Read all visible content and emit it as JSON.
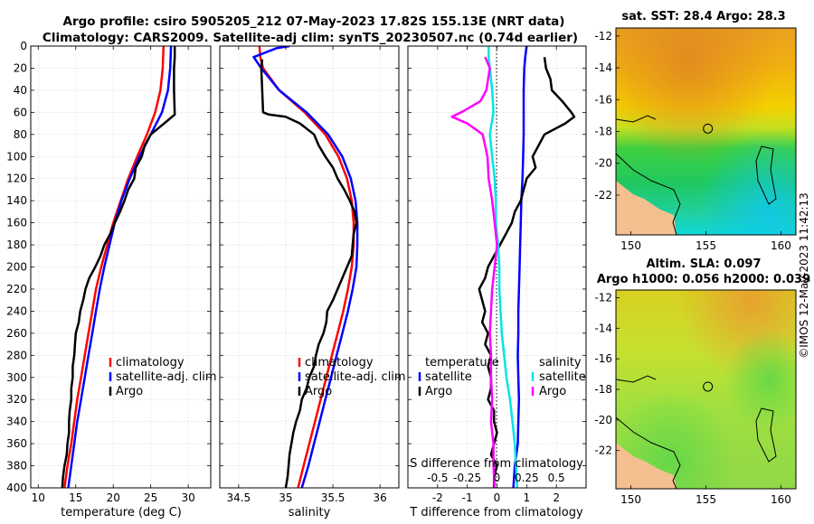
{
  "title_line1": "Argo profile: csiro 5905205_212 07-May-2023 17.82S 155.13E (NRT data)",
  "title_line2": "Climatology: CARS2009. Satellite-adj clim: synTS_20230507.nc (0.74d earlier)",
  "colors": {
    "climatology": "#ff0000",
    "satellite": "#0000ff",
    "argo": "#000000",
    "sat_salinity": "#00e5e5",
    "argo_salinity": "#ff00ff",
    "grid": "#c8c8c8"
  },
  "chart_data": [
    {
      "name": "temperature",
      "type": "line",
      "xlabel": "temperature (deg C)",
      "ylabel": "depth",
      "xlim": [
        9,
        33
      ],
      "ylim": [
        400,
        0
      ],
      "xticks": [
        10,
        15,
        20,
        25,
        30
      ],
      "yticks": [
        0,
        20,
        40,
        60,
        80,
        100,
        120,
        140,
        160,
        180,
        200,
        220,
        240,
        260,
        280,
        300,
        320,
        340,
        360,
        380,
        400
      ],
      "legend": [
        "climatology",
        "satellite-adj. clim",
        "Argo"
      ],
      "series": [
        {
          "name": "climatology",
          "color_key": "climatology",
          "depth": [
            0,
            20,
            40,
            60,
            80,
            100,
            120,
            140,
            160,
            180,
            200,
            220,
            240,
            260,
            280,
            300,
            320,
            340,
            360,
            380,
            400
          ],
          "values": [
            26.7,
            26.6,
            26.3,
            25.6,
            24.5,
            23.2,
            22.0,
            21.0,
            20.0,
            19.2,
            18.4,
            17.7,
            17.2,
            16.7,
            16.2,
            15.7,
            15.2,
            14.8,
            14.4,
            13.9,
            13.5
          ]
        },
        {
          "name": "satellite-adj. clim",
          "color_key": "satellite",
          "depth": [
            0,
            20,
            40,
            60,
            80,
            100,
            120,
            140,
            160,
            180,
            200,
            220,
            240,
            260,
            280,
            300,
            320,
            340,
            360,
            380,
            400
          ],
          "values": [
            27.7,
            27.6,
            27.3,
            26.5,
            25.0,
            23.5,
            22.2,
            21.1,
            20.2,
            19.5,
            18.8,
            18.2,
            17.7,
            17.2,
            16.7,
            16.2,
            15.7,
            15.2,
            14.8,
            14.4,
            14.0
          ]
        },
        {
          "name": "Argo",
          "color_key": "argo",
          "depth": [
            0,
            10,
            20,
            40,
            62,
            70,
            80,
            90,
            100,
            110,
            120,
            130,
            140,
            150,
            160,
            170,
            180,
            190,
            200,
            210,
            220,
            230,
            240,
            250,
            260,
            270,
            280,
            290,
            300,
            310,
            320,
            330,
            340,
            350,
            360,
            370,
            380,
            390,
            400
          ],
          "values": [
            28.2,
            28.2,
            28.1,
            28.1,
            28.2,
            26.8,
            25.0,
            24.2,
            23.8,
            23.0,
            22.8,
            22.0,
            21.5,
            20.9,
            20.2,
            19.6,
            18.8,
            18.3,
            17.6,
            16.8,
            16.3,
            16.0,
            15.6,
            15.4,
            15.0,
            14.9,
            14.8,
            14.6,
            14.6,
            14.4,
            14.4,
            14.2,
            14.1,
            14.1,
            13.9,
            13.8,
            13.5,
            13.3,
            13.2
          ]
        }
      ]
    },
    {
      "name": "salinity",
      "type": "line",
      "xlabel": "salinity",
      "ylabel": "depth",
      "xlim": [
        34.3,
        36.2
      ],
      "ylim": [
        400,
        0
      ],
      "xticks": [
        34.5,
        35,
        35.5,
        36
      ],
      "yticks": [
        0,
        20,
        40,
        60,
        80,
        100,
        120,
        140,
        160,
        180,
        200,
        220,
        240,
        260,
        280,
        300,
        320,
        340,
        360,
        380,
        400
      ],
      "legend": [
        "climatology",
        "satellite-adj. clim",
        "Argo"
      ],
      "series": [
        {
          "name": "climatology",
          "color_key": "climatology",
          "depth": [
            0,
            10,
            20,
            40,
            60,
            80,
            100,
            120,
            140,
            160,
            180,
            200,
            220,
            240,
            260,
            280,
            300,
            320,
            340,
            360,
            380,
            400
          ],
          "values": [
            34.72,
            34.73,
            34.76,
            34.93,
            35.2,
            35.42,
            35.56,
            35.65,
            35.7,
            35.72,
            35.72,
            35.7,
            35.66,
            35.61,
            35.55,
            35.49,
            35.43,
            35.37,
            35.31,
            35.25,
            35.19,
            35.13
          ]
        },
        {
          "name": "satellite-adj. clim",
          "color_key": "satellite",
          "depth": [
            0,
            2,
            10,
            20,
            40,
            60,
            80,
            100,
            120,
            140,
            160,
            180,
            200,
            220,
            240,
            260,
            280,
            300,
            320,
            340,
            360,
            380,
            400
          ],
          "values": [
            35.04,
            34.9,
            34.66,
            34.74,
            34.93,
            35.22,
            35.45,
            35.6,
            35.69,
            35.74,
            35.76,
            35.76,
            35.75,
            35.71,
            35.66,
            35.6,
            35.54,
            35.48,
            35.42,
            35.36,
            35.3,
            35.24,
            35.17
          ]
        },
        {
          "name": "Argo",
          "color_key": "argo",
          "depth": [
            12,
            20,
            40,
            60,
            62,
            64,
            70,
            80,
            90,
            100,
            110,
            120,
            130,
            140,
            150,
            160,
            170,
            180,
            190,
            200,
            210,
            220,
            230,
            240,
            250,
            260,
            270,
            280,
            290,
            300,
            310,
            320,
            330,
            340,
            350,
            360,
            370,
            380,
            390,
            400
          ],
          "values": [
            34.75,
            34.74,
            34.75,
            34.76,
            34.82,
            35.0,
            35.15,
            35.3,
            35.35,
            35.42,
            35.5,
            35.55,
            35.62,
            35.68,
            35.73,
            35.75,
            35.72,
            35.71,
            35.7,
            35.65,
            35.6,
            35.55,
            35.5,
            35.44,
            35.43,
            35.4,
            35.35,
            35.32,
            35.3,
            35.25,
            35.22,
            35.17,
            35.15,
            35.11,
            35.08,
            35.06,
            35.04,
            35.03,
            35.02,
            35.0
          ]
        }
      ]
    },
    {
      "name": "difference",
      "type": "line",
      "xlabel": "T difference from climatology",
      "xlabel_top": "S difference from climatology",
      "ylabel": "depth",
      "xlim": [
        -3,
        3
      ],
      "ylim": [
        400,
        0
      ],
      "xticks": [
        -2,
        -1,
        0,
        1,
        2
      ],
      "s_ticks": [
        -0.5,
        -0.25,
        0,
        0.25,
        0.5
      ],
      "s_tick_labels": [
        "-0.5",
        "-0.25",
        "0",
        "0.25",
        "0.5"
      ],
      "s_scale": 4,
      "yticks": [
        0,
        20,
        40,
        60,
        80,
        100,
        120,
        140,
        160,
        180,
        200,
        220,
        240,
        260,
        280,
        300,
        320,
        340,
        360,
        380,
        400
      ],
      "legend_temperature": {
        "title": "temperature",
        "entries": [
          "satellite",
          "Argo"
        ]
      },
      "legend_salinity": {
        "title": "salinity",
        "entries": [
          "satellite",
          "Argo"
        ]
      },
      "series": [
        {
          "name": "T satellite",
          "color_key": "satellite",
          "units": "T",
          "depth": [
            0,
            10,
            20,
            40,
            60,
            80,
            100,
            120,
            140,
            160,
            180,
            200,
            220,
            240,
            260,
            280,
            300,
            320,
            340,
            360,
            380,
            400
          ],
          "values": [
            1.0,
            0.95,
            0.92,
            0.9,
            0.9,
            0.9,
            0.88,
            0.86,
            0.82,
            0.8,
            0.78,
            0.76,
            0.74,
            0.72,
            0.72,
            0.7,
            0.72,
            0.74,
            0.72,
            0.7,
            0.6,
            0.55
          ]
        },
        {
          "name": "T Argo",
          "color_key": "argo",
          "units": "T",
          "depth": [
            10,
            20,
            30,
            40,
            50,
            60,
            64,
            70,
            80,
            90,
            100,
            110,
            120,
            130,
            140,
            150,
            160,
            170,
            180,
            190,
            200,
            210,
            220,
            230,
            240,
            250,
            260,
            270,
            280,
            290,
            300,
            310,
            320,
            330,
            340,
            350,
            360,
            370,
            380,
            390,
            400
          ],
          "values": [
            1.6,
            1.65,
            1.8,
            1.85,
            2.2,
            2.5,
            2.6,
            2.3,
            1.6,
            1.4,
            1.2,
            1.3,
            1.0,
            0.9,
            0.8,
            0.6,
            0.5,
            0.3,
            0.1,
            -0.1,
            -0.3,
            -0.4,
            -0.6,
            -0.5,
            -0.4,
            -0.5,
            -0.3,
            -0.4,
            -0.2,
            -0.3,
            -0.2,
            -0.2,
            -0.3,
            -0.1,
            -0.1,
            0.0,
            -0.1,
            -0.2,
            0.0,
            -0.1,
            -0.1
          ]
        },
        {
          "name": "S satellite",
          "color_key": "sat_salinity",
          "units": "S",
          "depth": [
            0,
            10,
            20,
            40,
            60,
            80,
            100,
            120,
            140,
            160,
            180,
            200,
            220,
            240,
            260,
            280,
            300,
            320,
            340,
            360,
            380,
            400
          ],
          "values": [
            -0.07,
            -0.07,
            -0.06,
            -0.04,
            -0.03,
            -0.06,
            -0.04,
            -0.02,
            -0.01,
            -0.01,
            0.01,
            0.02,
            0.02,
            0.03,
            0.04,
            0.06,
            0.08,
            0.11,
            0.13,
            0.15,
            0.16,
            0.17
          ]
        },
        {
          "name": "S Argo",
          "color_key": "argo_salinity",
          "units": "S",
          "depth": [
            10,
            20,
            40,
            50,
            60,
            64,
            70,
            80,
            100,
            120,
            140,
            160,
            180,
            200,
            220,
            240,
            260,
            280,
            300,
            320,
            340,
            360,
            380,
            400
          ],
          "values": [
            -0.1,
            -0.06,
            -0.09,
            -0.14,
            -0.3,
            -0.38,
            -0.25,
            -0.12,
            -0.08,
            -0.07,
            -0.04,
            -0.02,
            0.0,
            -0.02,
            -0.04,
            -0.05,
            -0.06,
            -0.05,
            -0.05,
            -0.04,
            -0.05,
            -0.03,
            -0.03,
            -0.02
          ]
        }
      ]
    }
  ],
  "maps": {
    "sst": {
      "title": "sat. SST: 28.4 Argo: 28.3",
      "xticks": [
        "150",
        "155",
        "160"
      ],
      "yticks": [
        "-12",
        "-14",
        "-16",
        "-18",
        "-20",
        "-22"
      ],
      "lon_range": [
        149,
        161
      ],
      "lat_range": [
        -24.5,
        -11.5
      ],
      "float_position": {
        "lon": 155.13,
        "lat": -17.82
      }
    },
    "sla": {
      "title_line1": "Altim. SLA: 0.097",
      "title_line2": "Argo h1000: 0.056 h2000: 0.039",
      "xticks": [
        "150",
        "155",
        "160"
      ],
      "yticks": [
        "-12",
        "-14",
        "-16",
        "-18",
        "-20",
        "-22"
      ],
      "lon_range": [
        149,
        161
      ],
      "lat_range": [
        -24.5,
        -11.5
      ],
      "float_position": {
        "lon": 155.13,
        "lat": -17.82
      }
    }
  },
  "stamp": "©IMOS 12-May-2023 11:42:13"
}
